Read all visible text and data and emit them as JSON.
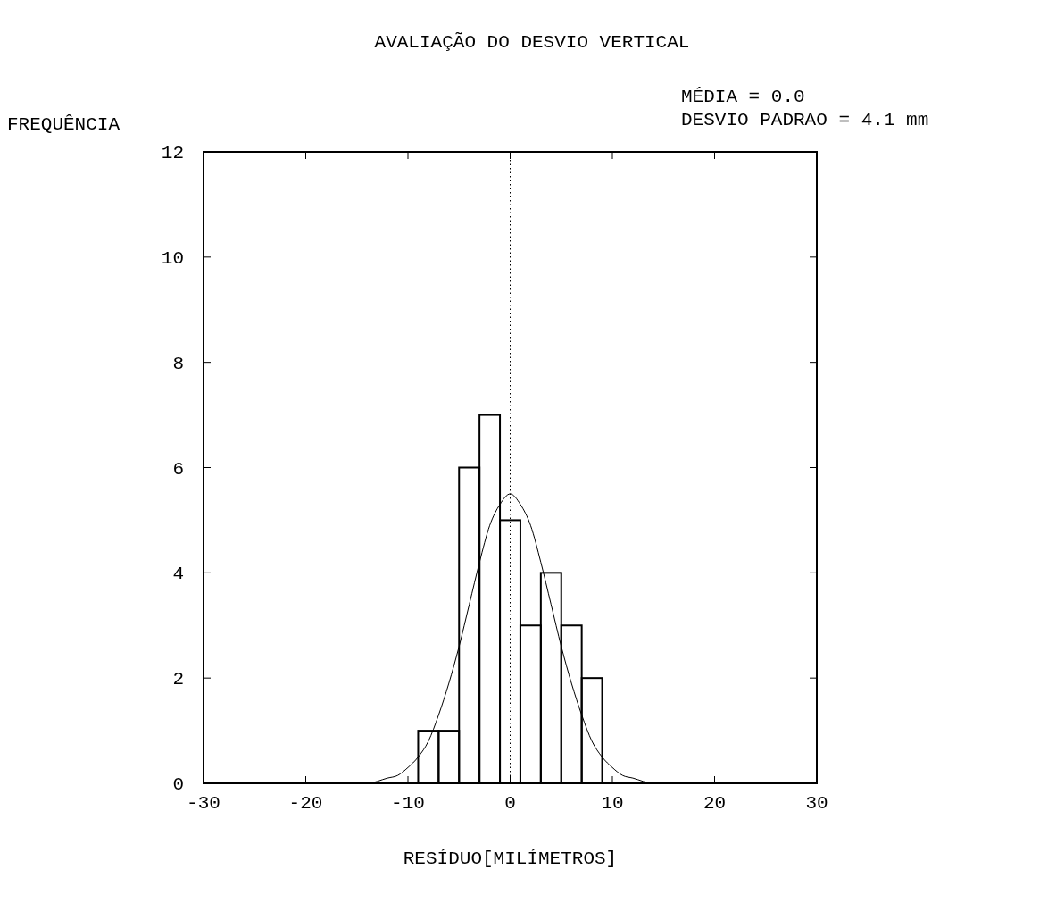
{
  "chart_data": {
    "type": "histogram",
    "title": "AVALIAÇÃO DO DESVIO VERTICAL",
    "xlabel": "RESÍDUO[MILÍMETROS]",
    "ylabel": "FREQUÊNCIA",
    "annotations": [
      "MÉDIA = 0.0",
      "DESVIO PADRAO = 4.1 mm"
    ],
    "bins": [
      -9,
      -7,
      -5,
      -3,
      -1,
      1,
      3,
      5,
      7,
      9
    ],
    "values": [
      1,
      1,
      6,
      7,
      5,
      3,
      4,
      3,
      2
    ],
    "color": "#000000",
    "series": [
      {
        "type": "line",
        "color": "#000000",
        "x": [
          -16,
          -14,
          -12,
          -11,
          -10,
          -9,
          -8,
          -7,
          -6,
          -5,
          -4,
          -3,
          -2,
          -1,
          0,
          1,
          2,
          3,
          4,
          5,
          6,
          7,
          8,
          9,
          10,
          11,
          12,
          14,
          16
        ],
        "values": [
          0,
          0,
          0.1,
          0.15,
          0.3,
          0.5,
          0.8,
          1.3,
          1.9,
          2.6,
          3.4,
          4.2,
          4.9,
          5.3,
          5.5,
          5.3,
          4.9,
          4.2,
          3.4,
          2.6,
          1.9,
          1.3,
          0.8,
          0.5,
          0.3,
          0.15,
          0.1,
          0,
          0
        ]
      }
    ],
    "xlim": [
      -30,
      30
    ],
    "xticks": [
      -30,
      -20,
      -10,
      0,
      10,
      20,
      30
    ],
    "ylim": [
      0,
      12
    ],
    "yticks": [
      0,
      2,
      4,
      6,
      8,
      10,
      12
    ],
    "ref_lines": [
      {
        "axis": "x",
        "value": 0,
        "line_style": "dotted",
        "color": "#000000"
      }
    ]
  }
}
